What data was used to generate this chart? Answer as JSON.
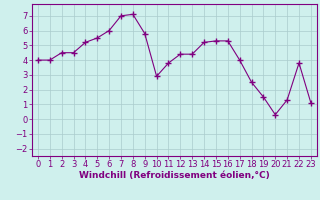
{
  "x": [
    0,
    1,
    2,
    3,
    4,
    5,
    6,
    7,
    8,
    9,
    10,
    11,
    12,
    13,
    14,
    15,
    16,
    17,
    18,
    19,
    20,
    21,
    22,
    23
  ],
  "y": [
    4.0,
    4.0,
    4.5,
    4.5,
    5.2,
    5.5,
    6.0,
    7.0,
    7.1,
    5.8,
    2.9,
    3.8,
    4.4,
    4.4,
    5.2,
    5.3,
    5.3,
    4.0,
    2.5,
    1.5,
    0.3,
    1.3,
    3.8,
    1.1
  ],
  "line_color": "#800080",
  "marker": "+",
  "marker_size": 4,
  "bg_color": "#cff0ed",
  "grid_color": "#aacccc",
  "xlabel": "Windchill (Refroidissement éolien,°C)",
  "xlim_min": -0.5,
  "xlim_max": 23.5,
  "ylim_min": -2.5,
  "ylim_max": 7.8,
  "yticks": [
    -2,
    -1,
    0,
    1,
    2,
    3,
    4,
    5,
    6,
    7
  ],
  "xticks": [
    0,
    1,
    2,
    3,
    4,
    5,
    6,
    7,
    8,
    9,
    10,
    11,
    12,
    13,
    14,
    15,
    16,
    17,
    18,
    19,
    20,
    21,
    22,
    23
  ],
  "xlabel_fontsize": 6.5,
  "tick_fontsize": 6.0
}
